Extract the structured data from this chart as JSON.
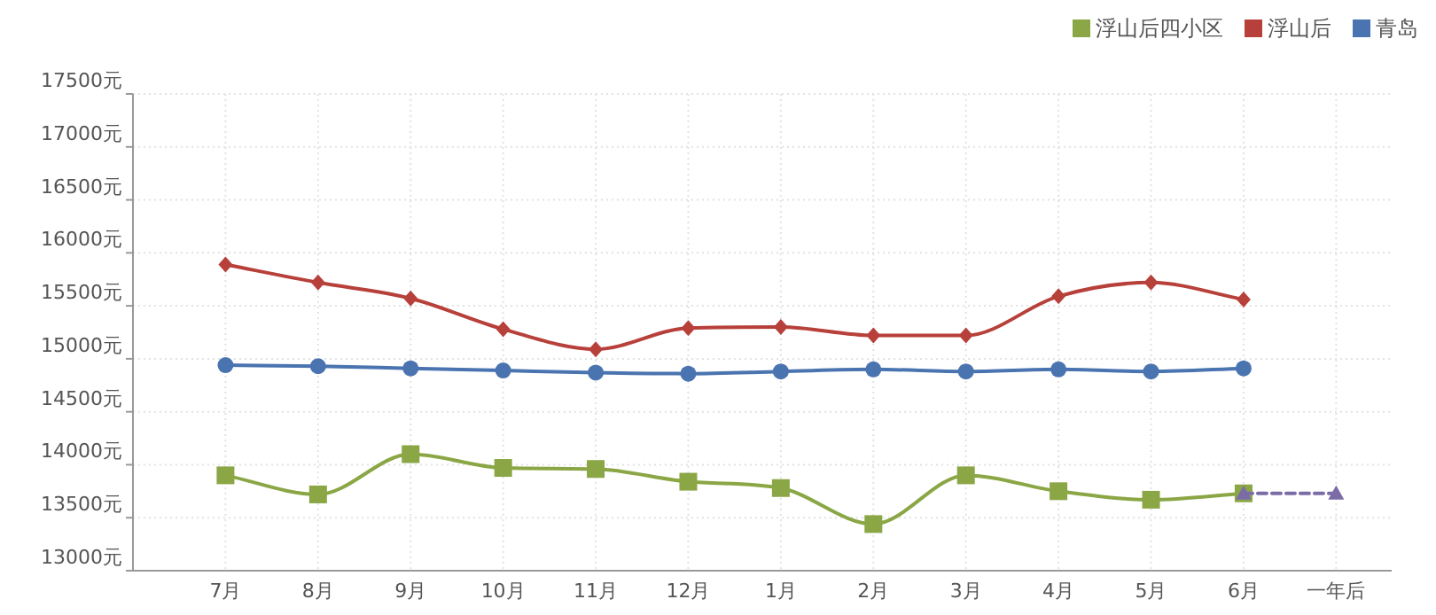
{
  "chart_data": {
    "type": "line",
    "categories": [
      "7月",
      "8月",
      "9月",
      "10月",
      "11月",
      "12月",
      "1月",
      "2月",
      "3月",
      "4月",
      "5月",
      "6月",
      "一年后"
    ],
    "ylim": [
      13000,
      17500
    ],
    "yticks": [
      {
        "value": 13000,
        "label": "13000元"
      },
      {
        "value": 13500,
        "label": "13500元"
      },
      {
        "value": 14000,
        "label": "14000元"
      },
      {
        "value": 14500,
        "label": "14500元"
      },
      {
        "value": 15000,
        "label": "15000元"
      },
      {
        "value": 15500,
        "label": "15500元"
      },
      {
        "value": 16000,
        "label": "16000元"
      },
      {
        "value": 16500,
        "label": "16500元"
      },
      {
        "value": 17000,
        "label": "17000元"
      },
      {
        "value": 17500,
        "label": "17500元"
      }
    ],
    "grid": true,
    "legend": "top right",
    "series": [
      {
        "name": "浮山后四小区",
        "color": "#8aa645",
        "marker": "square",
        "values": [
          13900,
          13720,
          14100,
          13970,
          13960,
          13840,
          13780,
          13440,
          13900,
          13750,
          13670,
          13730,
          null
        ]
      },
      {
        "name": "浮山后",
        "color": "#b8403a",
        "marker": "diamond",
        "values": [
          15890,
          15720,
          15570,
          15280,
          15090,
          15290,
          15300,
          15220,
          15220,
          15590,
          15720,
          15560,
          null
        ]
      },
      {
        "name": "青岛",
        "color": "#4a74b0",
        "marker": "circle",
        "values": [
          14940,
          14930,
          14910,
          14890,
          14870,
          14860,
          14880,
          14900,
          14880,
          14900,
          14880,
          14910,
          null
        ]
      },
      {
        "color": "#7b6ca8",
        "marker": "triangle",
        "line_style": "dashed",
        "values": [
          null,
          null,
          null,
          null,
          null,
          null,
          null,
          null,
          null,
          null,
          null,
          13730,
          13730
        ]
      }
    ]
  }
}
